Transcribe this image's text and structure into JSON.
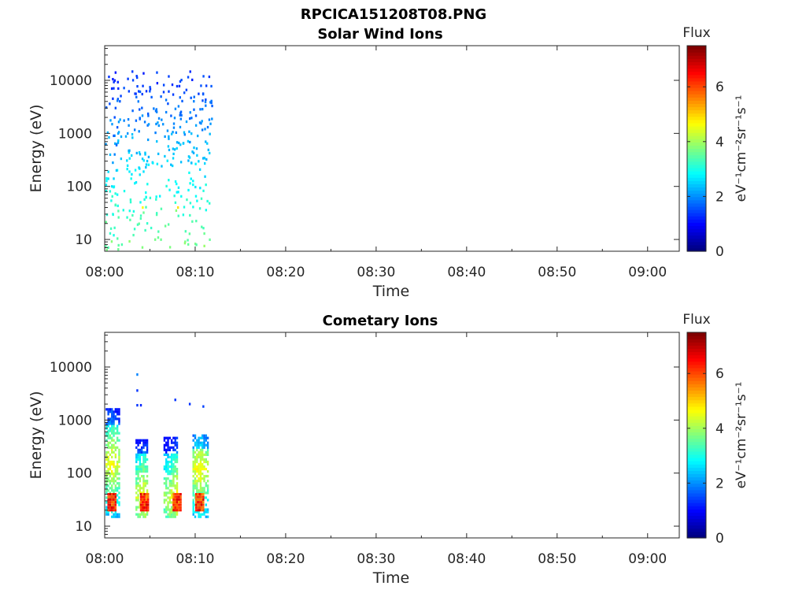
{
  "figure": {
    "title": "RPCICA151208T08.PNG"
  },
  "colors": {
    "jet": [
      "#00007f",
      "#0000ff",
      "#007fff",
      "#00ffff",
      "#7fff7f",
      "#ffff00",
      "#ff7f00",
      "#ff0000",
      "#7f0000"
    ]
  },
  "chart_data": [
    {
      "type": "heatmap",
      "title": "Solar Wind Ions",
      "xlabel": "Time",
      "ylabel": "Energy (eV)",
      "x_ticks": [
        "08:00",
        "08:10",
        "08:20",
        "08:30",
        "08:40",
        "08:50",
        "09:00"
      ],
      "x_range_min": [
        0,
        63.5
      ],
      "y_scale": "log",
      "y_ticks": [
        "10",
        "100",
        "1000",
        "10000"
      ],
      "y_range": [
        6,
        45000
      ],
      "colorbar": {
        "title": "Flux",
        "label": "eV⁻¹cm⁻²sr⁻¹s⁻¹",
        "ticks": [
          "0",
          "2",
          "4",
          "6"
        ],
        "range": [
          0,
          7.5
        ]
      },
      "data_window_min": [
        0,
        11.8
      ],
      "points": [
        [
          0.3,
          1.0,
          7,
          3.4
        ],
        [
          0.6,
          2.2,
          16,
          3.3
        ],
        [
          0.9,
          4.5,
          12,
          3.0
        ],
        [
          1.4,
          6.8,
          6.5,
          3.6
        ],
        [
          1.8,
          9.7,
          8,
          3.4
        ],
        [
          0.5,
          3.6,
          13,
          3.2
        ],
        [
          0.8,
          6.2,
          30,
          3.0
        ],
        [
          1.1,
          8.5,
          45,
          3.4
        ],
        [
          1.3,
          10.2,
          70,
          2.8
        ],
        [
          0.7,
          4.1,
          100,
          2.6
        ],
        [
          0.9,
          6.5,
          140,
          2.5
        ],
        [
          1.2,
          8.4,
          200,
          2.4
        ],
        [
          0.8,
          4.4,
          280,
          2.1
        ],
        [
          1.0,
          6.1,
          400,
          1.9
        ],
        [
          1.2,
          9.5,
          600,
          1.7
        ],
        [
          0.9,
          5.2,
          900,
          1.6
        ],
        [
          1.3,
          7.3,
          1300,
          1.6
        ],
        [
          1.0,
          3.6,
          2000,
          1.5
        ],
        [
          1.1,
          8.5,
          3000,
          1.5
        ],
        [
          0.8,
          5.9,
          4500,
          1.3
        ],
        [
          1.4,
          9.9,
          7000,
          1.2
        ],
        [
          0.8,
          2.9,
          10500,
          1.1
        ],
        [
          1.1,
          7.6,
          14000,
          1.1
        ],
        [
          4.2,
          32,
          3.6
        ],
        [
          7.8,
          35,
          3.8
        ],
        [
          3.9,
          28,
          3.3
        ],
        [
          4.1,
          40,
          4.7
        ],
        [
          8.0,
          40,
          4.9
        ],
        [
          4.6,
          300,
          2.4
        ],
        [
          9.6,
          450,
          2.3
        ],
        [
          4.2,
          190,
          2.6
        ]
      ]
    },
    {
      "type": "heatmap",
      "title": "Cometary Ions",
      "xlabel": "Time",
      "ylabel": "Energy (eV)",
      "x_ticks": [
        "08:00",
        "08:10",
        "08:20",
        "08:30",
        "08:40",
        "08:50",
        "09:00"
      ],
      "x_range_min": [
        0,
        63.5
      ],
      "y_scale": "log",
      "y_ticks": [
        "10",
        "100",
        "1000",
        "10000"
      ],
      "y_range": [
        6,
        45000
      ],
      "colorbar": {
        "title": "Flux",
        "label": "eV⁻¹cm⁻²sr⁻¹s⁻¹",
        "ticks": [
          "0",
          "2",
          "4",
          "6"
        ],
        "range": [
          0,
          7.5
        ]
      },
      "data_window_min": [
        0,
        11.8
      ],
      "bursts": [
        {
          "t_min": [
            0.1,
            1.5
          ],
          "e_top": 1700,
          "peak_t": 0.7,
          "peak_e": 150
        },
        {
          "t_min": [
            3.4,
            4.8
          ],
          "e_top": 450,
          "peak_t": 4.3,
          "peak_e": 35
        },
        {
          "t_min": [
            6.5,
            8.0
          ],
          "e_top": 480,
          "peak_t": 7.9,
          "peak_e": 35
        },
        {
          "t_min": [
            9.7,
            11.3
          ],
          "e_top": 550,
          "peak_t": 10.4,
          "peak_e": 120
        }
      ],
      "isolated_points": [
        [
          3.5,
          7200,
          1.9
        ],
        [
          3.5,
          3600,
          1.3
        ],
        [
          3.5,
          1900,
          1.3
        ],
        [
          3.9,
          1900,
          1.2
        ],
        [
          7.7,
          2400,
          1.3
        ],
        [
          9.3,
          2000,
          1.3
        ],
        [
          10.8,
          1800,
          1.4
        ]
      ]
    }
  ]
}
